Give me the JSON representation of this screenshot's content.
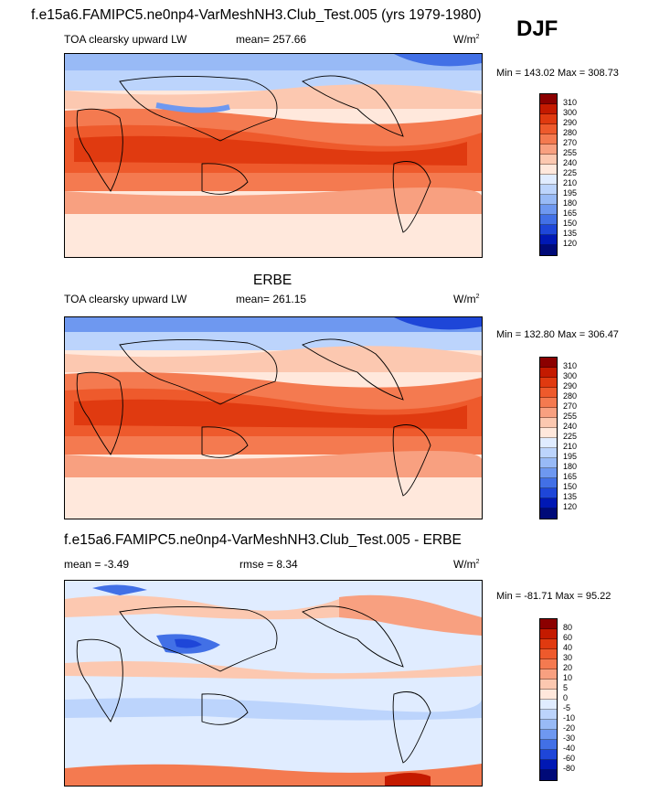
{
  "title_top": "f.e15a6.FAMIPC5.ne0np4-VarMeshNH3.Club_Test.005 (yrs 1979-1980)",
  "season": "DJF",
  "panels": [
    {
      "id": "model",
      "heading": "",
      "left_label": "TOA clearsky upward LW",
      "mid_label": "mean= 257.66",
      "units": "W/m",
      "units_sup": "2",
      "minmax": "Min = 143.02 Max = 308.73",
      "levels": [
        "310",
        "300",
        "290",
        "280",
        "270",
        "255",
        "240",
        "225",
        "210",
        "195",
        "180",
        "165",
        "150",
        "135",
        "120"
      ],
      "colors": [
        "#8b0000",
        "#c41a00",
        "#e03a10",
        "#ee5a2c",
        "#f47a50",
        "#f8a080",
        "#fcc8b0",
        "#ffe8dc",
        "#e0ecff",
        "#bcd4fc",
        "#98baf6",
        "#6e98f0",
        "#4270e6",
        "#1e46d8",
        "#0018b4",
        "#000a78"
      ]
    },
    {
      "id": "obs",
      "heading": "ERBE",
      "left_label": "TOA clearsky upward LW",
      "mid_label": "mean= 261.15",
      "units": "W/m",
      "units_sup": "2",
      "minmax": "Min = 132.80 Max = 306.47",
      "levels": [
        "310",
        "300",
        "290",
        "280",
        "270",
        "255",
        "240",
        "225",
        "210",
        "195",
        "180",
        "165",
        "150",
        "135",
        "120"
      ],
      "colors": [
        "#8b0000",
        "#c41a00",
        "#e03a10",
        "#ee5a2c",
        "#f47a50",
        "#f8a080",
        "#fcc8b0",
        "#ffe8dc",
        "#e0ecff",
        "#bcd4fc",
        "#98baf6",
        "#6e98f0",
        "#4270e6",
        "#1e46d8",
        "#0018b4",
        "#000a78"
      ]
    },
    {
      "id": "diff",
      "heading": "f.e15a6.FAMIPC5.ne0np4-VarMeshNH3.Club_Test.005 - ERBE",
      "left_label": "mean =  -3.49",
      "mid_label": "rmse =   8.34",
      "units": "W/m",
      "units_sup": "2",
      "minmax": "Min = -81.71 Max =  95.22",
      "levels": [
        "80",
        "60",
        "40",
        "30",
        "20",
        "10",
        "5",
        "0",
        "-5",
        "-10",
        "-20",
        "-30",
        "-40",
        "-60",
        "-80"
      ],
      "colors": [
        "#8b0000",
        "#c41a00",
        "#e03a10",
        "#ee5a2c",
        "#f47a50",
        "#f8a080",
        "#fcc8b0",
        "#ffe8dc",
        "#e0ecff",
        "#bcd4fc",
        "#98baf6",
        "#6e98f0",
        "#4270e6",
        "#1e46d8",
        "#0018b4",
        "#000a78"
      ]
    }
  ]
}
